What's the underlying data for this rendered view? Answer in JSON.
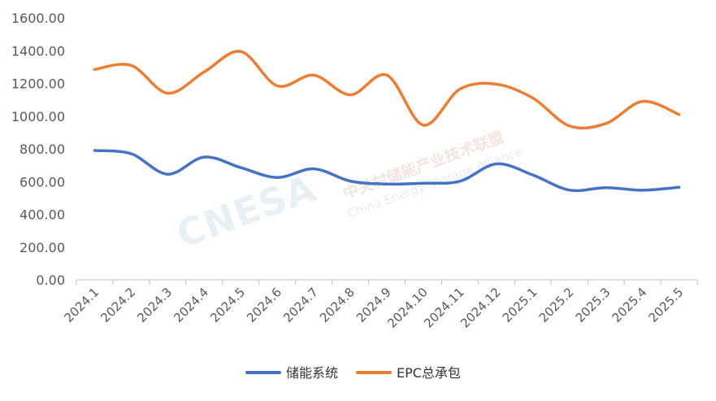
{
  "chart_data": {
    "type": "line",
    "categories": [
      "2024.1",
      "2024.2",
      "2024.3",
      "2024.4",
      "2024.5",
      "2024.6",
      "2024.7",
      "2024.8",
      "2024.9",
      "2024.10",
      "2024.11",
      "2024.12",
      "2025.1",
      "2025.2",
      "2025.3",
      "2025.4",
      "2025.5"
    ],
    "series": [
      {
        "name": "储能系统",
        "color": "#4472c4",
        "values": [
          790,
          770,
          645,
          750,
          685,
          625,
          678,
          603,
          585,
          590,
          602,
          708,
          640,
          548,
          563,
          547,
          565
        ]
      },
      {
        "name": "EPC总承包",
        "color": "#ed7d31",
        "values": [
          1285,
          1310,
          1140,
          1270,
          1395,
          1185,
          1250,
          1130,
          1250,
          945,
          1165,
          1195,
          1110,
          940,
          955,
          1090,
          1010
        ]
      }
    ],
    "y_ticks": [
      "0.00",
      "200.00",
      "400.00",
      "600.00",
      "800.00",
      "1000.00",
      "1200.00",
      "1400.00",
      "1600.00"
    ],
    "ylim": [
      0,
      1600
    ],
    "grid": false,
    "legend_position": "bottom",
    "title": "",
    "xlabel": "",
    "ylabel": ""
  },
  "watermark": {
    "logo": "CNESA",
    "cn": "中关村储能产业技术联盟",
    "en": "China Energy Storage Alliance"
  }
}
